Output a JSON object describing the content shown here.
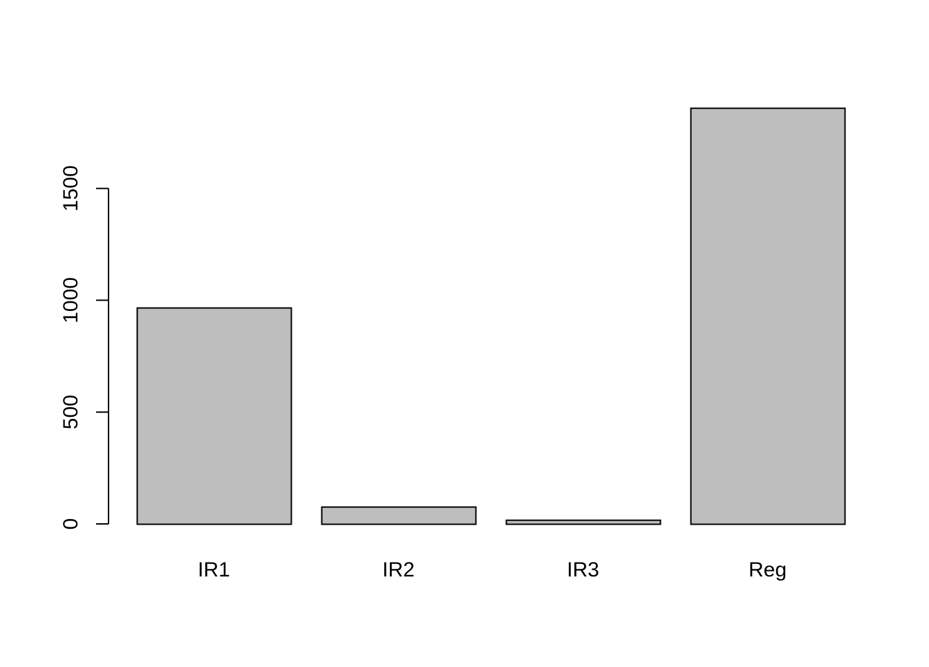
{
  "chart_data": {
    "type": "bar",
    "categories": [
      "IR1",
      "IR2",
      "IR3",
      "Reg"
    ],
    "values": [
      967,
      77,
      18,
      1860
    ],
    "title": "",
    "xlabel": "",
    "ylabel": "",
    "ylim": [
      0,
      1860
    ],
    "yticks": [
      0,
      500,
      1000,
      1500
    ],
    "yticklabels": [
      "0",
      "500",
      "1000",
      "1500"
    ],
    "grid": false,
    "bar_color": "#bebebe",
    "bar_border_color": "#000000"
  }
}
